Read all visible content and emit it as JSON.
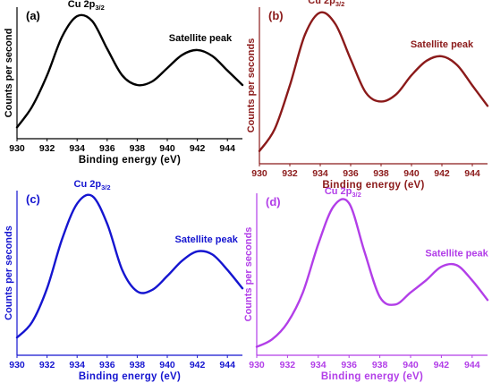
{
  "chart_data": [
    {
      "type": "line",
      "panel": "(a)",
      "color": "#000000",
      "xlabel": "Binding energy (eV)",
      "ylabel": "Counts per second",
      "xlim": [
        930,
        945
      ],
      "xticks": [
        "930",
        "932",
        "934",
        "936",
        "938",
        "940",
        "942",
        "944"
      ],
      "annotations": [
        {
          "text": "Cu 2p",
          "sub": "3/2",
          "x": 934.6
        },
        {
          "text": "Satellite peak",
          "x": 942.2
        }
      ],
      "x": [
        930,
        931,
        932,
        933,
        934,
        935,
        936,
        937,
        938,
        939,
        940,
        941,
        942,
        943,
        944,
        945
      ],
      "y": [
        0.05,
        0.22,
        0.48,
        0.8,
        0.97,
        0.93,
        0.7,
        0.48,
        0.4,
        0.43,
        0.54,
        0.65,
        0.69,
        0.64,
        0.52,
        0.4
      ]
    },
    {
      "type": "line",
      "panel": "(b)",
      "color": "#8b1a1a",
      "xlabel": "Binding energy (eV)",
      "ylabel": "Counts per seconds",
      "xlim": [
        930,
        945
      ],
      "xticks": [
        "930",
        "932",
        "934",
        "936",
        "938",
        "940",
        "942",
        "944"
      ],
      "annotations": [
        {
          "text": "Cu 2p",
          "sub": "3/2",
          "x": 934.4
        },
        {
          "text": "Satellite peak",
          "x": 942.0
        }
      ],
      "x": [
        930,
        931,
        932,
        933,
        934,
        935,
        936,
        937,
        938,
        939,
        940,
        941,
        942,
        943,
        944,
        945
      ],
      "y": [
        0.05,
        0.2,
        0.5,
        0.85,
        1.0,
        0.92,
        0.68,
        0.45,
        0.39,
        0.44,
        0.57,
        0.67,
        0.7,
        0.64,
        0.5,
        0.36
      ]
    },
    {
      "type": "line",
      "panel": "(c)",
      "color": "#1515d0",
      "xlabel": "Binding energy (eV)",
      "ylabel": "Counts per seconds",
      "xlim": [
        930,
        945
      ],
      "xticks": [
        "930",
        "932",
        "934",
        "936",
        "938",
        "940",
        "942",
        "944"
      ],
      "annotations": [
        {
          "text": "Cu 2p",
          "sub": "3/2",
          "x": 935.0
        },
        {
          "text": "Satellite peak",
          "x": 942.6
        }
      ],
      "x": [
        930,
        931,
        932,
        933,
        934,
        935,
        936,
        937,
        938,
        939,
        940,
        941,
        942,
        943,
        944,
        945
      ],
      "y": [
        0.08,
        0.18,
        0.4,
        0.72,
        0.95,
        1.0,
        0.82,
        0.52,
        0.38,
        0.39,
        0.48,
        0.58,
        0.64,
        0.62,
        0.52,
        0.4
      ]
    },
    {
      "type": "line",
      "panel": "(d)",
      "color": "#b23ee8",
      "xlabel": "Binding energy (eV)",
      "ylabel": "Counts per seconds",
      "xlim": [
        930,
        945
      ],
      "xticks": [
        "930",
        "932",
        "934",
        "936",
        "938",
        "940",
        "942",
        "944"
      ],
      "annotations": [
        {
          "text": "Cu 2p",
          "sub": "3/2",
          "x": 935.6
        },
        {
          "text": "Satellite peak",
          "x": 943.0
        }
      ],
      "x": [
        930,
        931,
        932,
        933,
        934,
        935,
        936,
        937,
        938,
        939,
        940,
        941,
        942,
        943,
        944,
        945
      ],
      "y": [
        0.02,
        0.07,
        0.18,
        0.38,
        0.7,
        0.95,
        0.97,
        0.65,
        0.35,
        0.3,
        0.38,
        0.46,
        0.55,
        0.56,
        0.46,
        0.33
      ]
    }
  ]
}
